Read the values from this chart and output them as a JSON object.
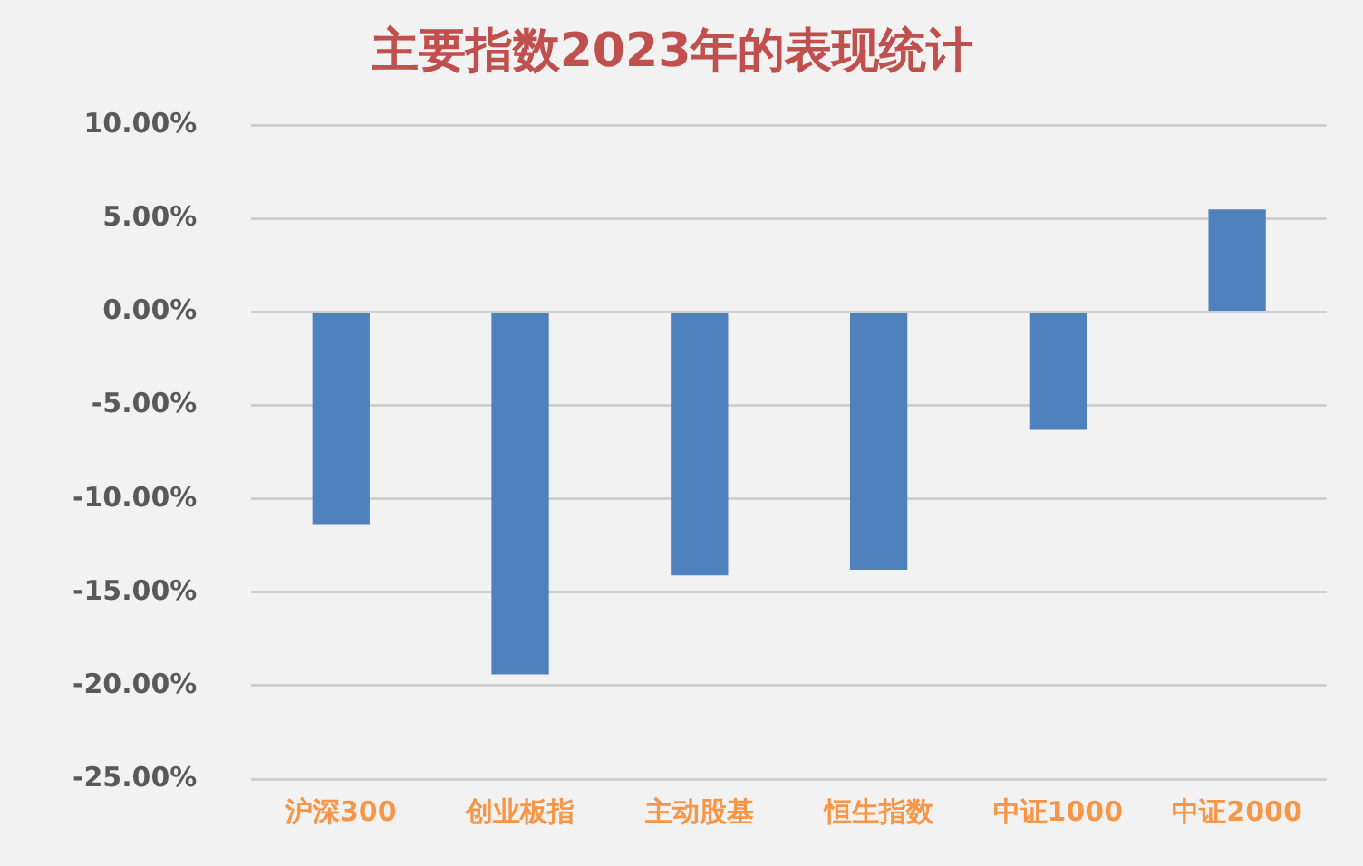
{
  "chart_data": {
    "type": "bar",
    "title": "主要指数2023年的表现统计",
    "categories": [
      "沪深300",
      "创业板指",
      "主动股基",
      "恒生指数",
      "中证1000",
      "中证2000"
    ],
    "values": [
      -11.4,
      -19.4,
      -14.1,
      -13.8,
      -6.3,
      5.5
    ],
    "color": "#4f81bd",
    "ylim": [
      -25,
      10
    ],
    "yticks": [
      {
        "value": 10,
        "label": "10.00%"
      },
      {
        "value": 5,
        "label": "5.00%"
      },
      {
        "value": 0,
        "label": "0.00%"
      },
      {
        "value": -5,
        "label": "-5.00%"
      },
      {
        "value": -10,
        "label": "-10.00%"
      },
      {
        "value": -15,
        "label": "-15.00%"
      },
      {
        "value": -20,
        "label": "-20.00%"
      },
      {
        "value": -25,
        "label": "-25.00%"
      }
    ],
    "grid": "y",
    "legend": false
  }
}
